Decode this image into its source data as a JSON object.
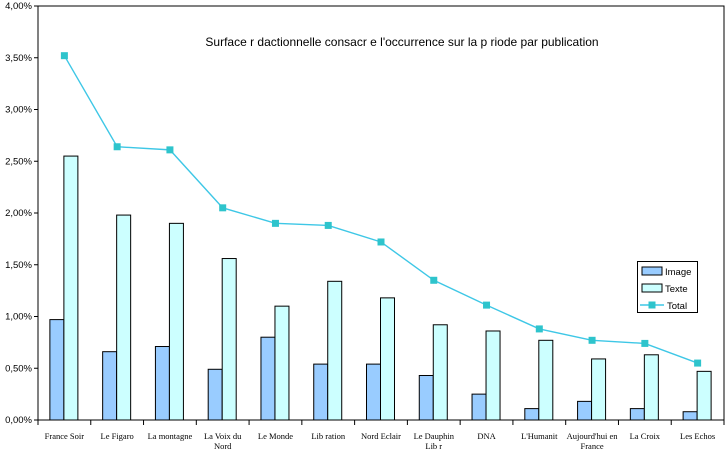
{
  "chart_data": {
    "type": "bar",
    "subtype": "bar+line combo",
    "title": "Surface r dactionnelle consacr e   l'occurrence sur la p riode par publication",
    "categories": [
      "France Soir",
      "Le Figaro",
      "La montagne",
      "La Voix du Nord",
      "Le Monde",
      "Lib ration",
      "Nord Eclair",
      "Le Dauphin Lib r",
      "DNA",
      "L'Humanit",
      "Aujourd'hui en France",
      "La Croix",
      "Les Echos"
    ],
    "category_wrap": [
      [
        "France Soir"
      ],
      [
        "Le Figaro"
      ],
      [
        "La montagne"
      ],
      [
        "La Voix du",
        "Nord"
      ],
      [
        "Le Monde"
      ],
      [
        "Lib ration"
      ],
      [
        "Nord Eclair"
      ],
      [
        "Le Dauphin",
        "Lib r"
      ],
      [
        "DNA"
      ],
      [
        "L'Humanit"
      ],
      [
        "Aujourd'hui en",
        "France"
      ],
      [
        "La Croix"
      ],
      [
        "Les Echos"
      ]
    ],
    "series": [
      {
        "name": "Image",
        "type": "bar",
        "color": "#99CCFF",
        "values": [
          0.97,
          0.66,
          0.71,
          0.49,
          0.8,
          0.54,
          0.54,
          0.43,
          0.25,
          0.11,
          0.18,
          0.11,
          0.08
        ]
      },
      {
        "name": "Texte",
        "type": "bar",
        "color": "#CCFFFF",
        "values": [
          2.55,
          1.98,
          1.9,
          1.56,
          1.1,
          1.34,
          1.18,
          0.92,
          0.86,
          0.77,
          0.59,
          0.63,
          0.47
        ]
      },
      {
        "name": "Total",
        "type": "line",
        "color": "#3EC7E6",
        "marker_color": "#2EC4CC",
        "values": [
          3.52,
          2.64,
          2.61,
          2.05,
          1.9,
          1.88,
          1.72,
          1.35,
          1.11,
          0.88,
          0.77,
          0.74,
          0.55
        ]
      }
    ],
    "xlabel": "",
    "ylabel": "",
    "ylim": [
      0,
      4
    ],
    "ytick_step": 0.5,
    "ytick_labels": [
      "0,00%",
      "0,50%",
      "1,00%",
      "1,50%",
      "2,00%",
      "2,50%",
      "3,00%",
      "3,50%",
      "4,00%"
    ],
    "grid": false,
    "legend_position": "inside-right",
    "plot_border_color": "#000000",
    "bar_border_color": "#000000"
  }
}
